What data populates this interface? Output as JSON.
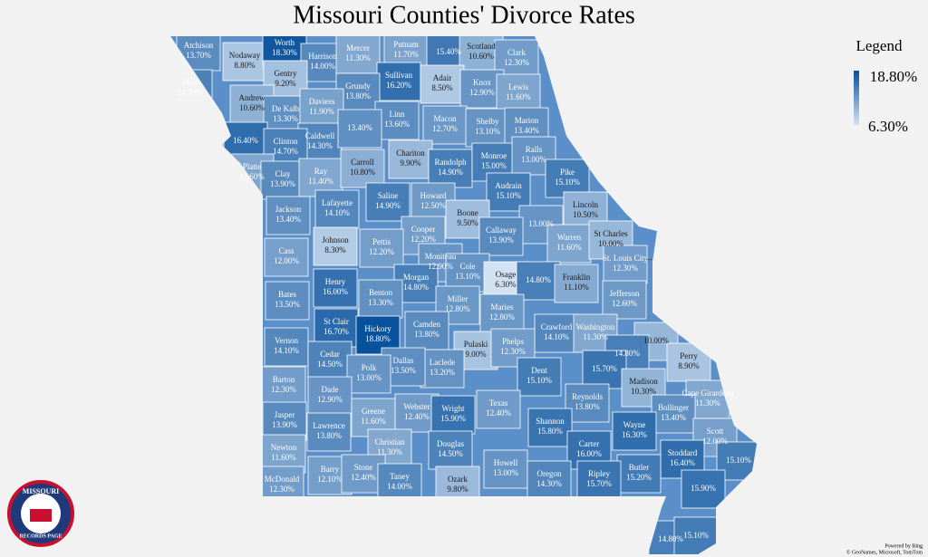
{
  "title": "Missouri Counties' Divorce Rates",
  "legend": {
    "title": "Legend",
    "max": 18.8,
    "max_label": "18.80%",
    "min": 6.3,
    "min_label": "6.30%"
  },
  "counties": [
    {
      "name": "Atchison",
      "value": 13.7,
      "value_label": "13.70%"
    },
    {
      "name": "Nodaway",
      "value": 8.8,
      "value_label": "8.80%"
    },
    {
      "name": "Worth",
      "value": 18.3,
      "value_label": "18.30%"
    },
    {
      "name": "Harrison",
      "value": 14.0,
      "value_label": "14.00%"
    },
    {
      "name": "Mercer",
      "value": 11.3,
      "value_label": "11.30%"
    },
    {
      "name": "Putnam",
      "value": 11.7,
      "value_label": "11.70%"
    },
    {
      "name": null,
      "value": 15.4,
      "value_label": "15.40%"
    },
    {
      "name": "Scotland",
      "value": 10.6,
      "value_label": "10.60%"
    },
    {
      "name": "Clark",
      "value": 12.3,
      "value_label": "12.30%"
    },
    {
      "name": "Gentry",
      "value": 9.2,
      "value_label": "9.20%"
    },
    {
      "name": "Holt",
      "value": 14.7,
      "value_label": "14.70%"
    },
    {
      "name": "Andrew",
      "value": 10.6,
      "value_label": "10.60%"
    },
    {
      "name": "Sullivan",
      "value": 16.2,
      "value_label": "16.20%"
    },
    {
      "name": "Adair",
      "value": 8.5,
      "value_label": "8.50%"
    },
    {
      "name": "Knox",
      "value": 12.9,
      "value_label": "12.90%"
    },
    {
      "name": "Lewis",
      "value": 11.6,
      "value_label": "11.60%"
    },
    {
      "name": "Grundy",
      "value": 13.8,
      "value_label": "13.80%"
    },
    {
      "name": "De Kalb",
      "value": 13.3,
      "value_label": "13.30%"
    },
    {
      "name": "Daviess",
      "value": 11.9,
      "value_label": "11.90%"
    },
    {
      "name": "Linn",
      "value": 13.6,
      "value_label": "13.60%"
    },
    {
      "name": "Macon",
      "value": 12.7,
      "value_label": "12.70%"
    },
    {
      "name": "Shelby",
      "value": 13.1,
      "value_label": "13.10%"
    },
    {
      "name": "Marion",
      "value": 13.4,
      "value_label": "13.40%"
    },
    {
      "name": null,
      "value": 16.4,
      "value_label": "16.40%"
    },
    {
      "name": "Caldwell",
      "value": 14.3,
      "value_label": "14.30%"
    },
    {
      "name": null,
      "value": 13.4,
      "value_label": "13.40%"
    },
    {
      "name": "Clinton",
      "value": 14.7,
      "value_label": "14.70%"
    },
    {
      "name": "Chariton",
      "value": 9.9,
      "value_label": "9.90%"
    },
    {
      "name": "Randolph",
      "value": 14.9,
      "value_label": "14.90%"
    },
    {
      "name": "Monroe",
      "value": 15.0,
      "value_label": "15.00%"
    },
    {
      "name": "Ralls",
      "value": 13.0,
      "value_label": "13.00%"
    },
    {
      "name": "Platte",
      "value": 11.6,
      "value_label": "11.60%"
    },
    {
      "name": "Clay",
      "value": 13.9,
      "value_label": "13.90%"
    },
    {
      "name": "Ray",
      "value": 11.4,
      "value_label": "11.40%"
    },
    {
      "name": "Carroll",
      "value": 10.8,
      "value_label": "10.80%"
    },
    {
      "name": "Pike",
      "value": 15.1,
      "value_label": "15.10%"
    },
    {
      "name": "Audrain",
      "value": 15.1,
      "value_label": "15.10%"
    },
    {
      "name": "Howard",
      "value": 12.5,
      "value_label": "12.50%"
    },
    {
      "name": "Saline",
      "value": 14.9,
      "value_label": "14.90%"
    },
    {
      "name": "Lafayette",
      "value": 14.1,
      "value_label": "14.10%"
    },
    {
      "name": "Jackson",
      "value": 13.4,
      "value_label": "13.40%"
    },
    {
      "name": "Boone",
      "value": 9.5,
      "value_label": "9.50%"
    },
    {
      "name": null,
      "value": 13.0,
      "value_label": "13.00%"
    },
    {
      "name": "Lincoln",
      "value": 10.5,
      "value_label": "10.50%"
    },
    {
      "name": "Cooper",
      "value": 12.2,
      "value_label": "12.20%"
    },
    {
      "name": "Callaway",
      "value": 13.9,
      "value_label": "13.90%"
    },
    {
      "name": "Warren",
      "value": 11.6,
      "value_label": "11.60%"
    },
    {
      "name": "St Charles",
      "value": 10.0,
      "value_label": "10.00%"
    },
    {
      "name": "Johnson",
      "value": 8.3,
      "value_label": "8.30%"
    },
    {
      "name": "Pettis",
      "value": 12.2,
      "value_label": "12.20%"
    },
    {
      "name": "Cass",
      "value": 12.0,
      "value_label": "12.00%"
    },
    {
      "name": "Moniteau",
      "value": 12.9,
      "value_label": "12.90%"
    },
    {
      "name": "Cole",
      "value": 13.1,
      "value_label": "13.10%"
    },
    {
      "name": "St. Louis City",
      "value": 12.3,
      "value_label": "12.30%"
    },
    {
      "name": "Osage",
      "value": 6.3,
      "value_label": "6.30%"
    },
    {
      "name": null,
      "value": 14.8,
      "value_label": "14.80%"
    },
    {
      "name": "Franklin",
      "value": 11.1,
      "value_label": "11.10%"
    },
    {
      "name": "Morgan",
      "value": 14.8,
      "value_label": "14.80%"
    },
    {
      "name": "Henry",
      "value": 16.0,
      "value_label": "16.00%"
    },
    {
      "name": "Benton",
      "value": 13.3,
      "value_label": "13.30%"
    },
    {
      "name": "Bates",
      "value": 13.5,
      "value_label": "13.50%"
    },
    {
      "name": "Jefferson",
      "value": 12.6,
      "value_label": "12.60%"
    },
    {
      "name": "Miller",
      "value": 12.8,
      "value_label": "12.80%"
    },
    {
      "name": "Maries",
      "value": 12.8,
      "value_label": "12.80%"
    },
    {
      "name": "Camden",
      "value": 13.8,
      "value_label": "13.80%"
    },
    {
      "name": "St Clair",
      "value": 16.7,
      "value_label": "16.70%"
    },
    {
      "name": "Hickory",
      "value": 18.8,
      "value_label": "18.80%"
    },
    {
      "name": "Crawford",
      "value": 14.1,
      "value_label": "14.10%"
    },
    {
      "name": "Washington",
      "value": 11.3,
      "value_label": "11.30%"
    },
    {
      "name": null,
      "value": 10.0,
      "value_label": "10.00%"
    },
    {
      "name": "Vernon",
      "value": 14.1,
      "value_label": "14.10%"
    },
    {
      "name": "Pulaski",
      "value": 9.0,
      "value_label": "9.00%"
    },
    {
      "name": "Phelps",
      "value": 12.3,
      "value_label": "12.30%"
    },
    {
      "name": null,
      "value": 14.8,
      "value_label": "14.80%"
    },
    {
      "name": "Perry",
      "value": 8.9,
      "value_label": "8.90%"
    },
    {
      "name": "Cedar",
      "value": 14.5,
      "value_label": "14.50%"
    },
    {
      "name": "Laclede",
      "value": 13.2,
      "value_label": "13.20%"
    },
    {
      "name": "Dallas",
      "value": 13.5,
      "value_label": "13.50%"
    },
    {
      "name": "Polk",
      "value": 13.0,
      "value_label": "13.00%"
    },
    {
      "name": null,
      "value": 15.7,
      "value_label": "15.70%"
    },
    {
      "name": "Dent",
      "value": 15.1,
      "value_label": "15.10%"
    },
    {
      "name": "Barton",
      "value": 12.3,
      "value_label": "12.30%"
    },
    {
      "name": "Madison",
      "value": 10.3,
      "value_label": "10.30%"
    },
    {
      "name": "Cape Girardeau",
      "value": 11.3,
      "value_label": "11.30%"
    },
    {
      "name": "Dade",
      "value": 12.9,
      "value_label": "12.90%"
    },
    {
      "name": "Reynolds",
      "value": 13.8,
      "value_label": "13.80%"
    },
    {
      "name": "Texas",
      "value": 12.4,
      "value_label": "12.40%"
    },
    {
      "name": "Webster",
      "value": 12.4,
      "value_label": "12.40%"
    },
    {
      "name": "Wright",
      "value": 15.9,
      "value_label": "15.90%"
    },
    {
      "name": "Greene",
      "value": 11.6,
      "value_label": "11.60%"
    },
    {
      "name": "Bollinger",
      "value": 13.4,
      "value_label": "13.40%"
    },
    {
      "name": "Jasper",
      "value": 13.9,
      "value_label": "13.90%"
    },
    {
      "name": "Shannon",
      "value": 15.8,
      "value_label": "15.80%"
    },
    {
      "name": "Wayne",
      "value": 16.3,
      "value_label": "16.30%"
    },
    {
      "name": "Lawrence",
      "value": 13.8,
      "value_label": "13.80%"
    },
    {
      "name": "Scott",
      "value": 12.0,
      "value_label": "12.00%"
    },
    {
      "name": "Carter",
      "value": 16.0,
      "value_label": "16.00%"
    },
    {
      "name": "Christian",
      "value": 11.3,
      "value_label": "11.30%"
    },
    {
      "name": "Douglas",
      "value": 14.5,
      "value_label": "14.50%"
    },
    {
      "name": "Newton",
      "value": 11.6,
      "value_label": "11.60%"
    },
    {
      "name": "Stoddard",
      "value": 16.4,
      "value_label": "16.40%"
    },
    {
      "name": null,
      "value": 15.1,
      "value_label": "15.10%"
    },
    {
      "name": "Howell",
      "value": 13.0,
      "value_label": "13.00%"
    },
    {
      "name": "Butler",
      "value": 15.2,
      "value_label": "15.20%"
    },
    {
      "name": "Oregon",
      "value": 14.3,
      "value_label": "14.30%"
    },
    {
      "name": "Ripley",
      "value": 15.7,
      "value_label": "15.70%"
    },
    {
      "name": "Barry",
      "value": 12.1,
      "value_label": "12.10%"
    },
    {
      "name": "Stone",
      "value": 12.4,
      "value_label": "12.40%"
    },
    {
      "name": "Taney",
      "value": 14.0,
      "value_label": "14.00%"
    },
    {
      "name": "Ozark",
      "value": 9.8,
      "value_label": "9.80%"
    },
    {
      "name": "McDonald",
      "value": 12.3,
      "value_label": "12.30%"
    },
    {
      "name": null,
      "value": 15.9,
      "value_label": "15.90%"
    },
    {
      "name": null,
      "value": 14.8,
      "value_label": "14.80%"
    },
    {
      "name": null,
      "value": 15.1,
      "value_label": "15.10%"
    }
  ],
  "overflow_label": "...",
  "logo": {
    "top": "MISSOURI",
    "bottom": "RECORDS PAGE"
  },
  "credits": {
    "line1": "Powered by Bing",
    "line2": "© GeoNames, Microsoft, TomTom"
  }
}
